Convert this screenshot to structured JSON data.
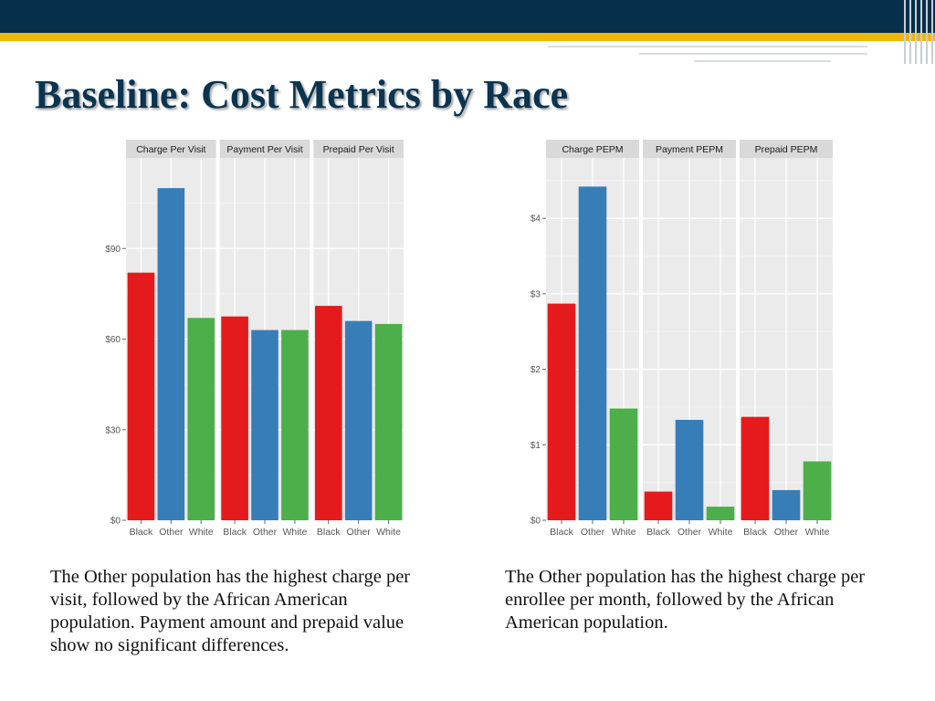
{
  "slide": {
    "title": "Baseline: Cost Metrics by Race",
    "caption_left": "The Other population has the highest charge per visit, followed by the African American population.  Payment amount and prepaid value show no significant differences.",
    "caption_right": "The Other population has the highest charge per enrollee per month, followed by the African American population."
  },
  "chart_data": [
    {
      "type": "bar",
      "facets": [
        "Charge Per Visit",
        "Payment Per Visit",
        "Prepaid Per Visit"
      ],
      "categories": [
        "Black",
        "Other",
        "White"
      ],
      "colors": [
        "#e41a1c",
        "#377eb8",
        "#4daf4a"
      ],
      "series": [
        {
          "facet": "Charge Per Visit",
          "values": [
            82,
            110,
            67
          ]
        },
        {
          "facet": "Payment Per Visit",
          "values": [
            67.5,
            63,
            63
          ]
        },
        {
          "facet": "Prepaid Per Visit",
          "values": [
            71,
            66,
            65
          ]
        }
      ],
      "ylim": [
        0,
        120
      ],
      "yticks": [
        0,
        30,
        60,
        90
      ],
      "ytick_labels": [
        "$0",
        "$30",
        "$60",
        "$90"
      ],
      "grid": true
    },
    {
      "type": "bar",
      "facets": [
        "Charge PEPM",
        "Payment PEPM",
        "Prepaid PEPM"
      ],
      "categories": [
        "Black",
        "Other",
        "White"
      ],
      "colors": [
        "#e41a1c",
        "#377eb8",
        "#4daf4a"
      ],
      "series": [
        {
          "facet": "Charge PEPM",
          "values": [
            2.87,
            4.42,
            1.48
          ]
        },
        {
          "facet": "Payment PEPM",
          "values": [
            0.38,
            1.33,
            0.18
          ]
        },
        {
          "facet": "Prepaid PEPM",
          "values": [
            1.37,
            0.4,
            0.78
          ]
        }
      ],
      "ylim": [
        0,
        4.8
      ],
      "yticks": [
        0,
        1,
        2,
        3,
        4
      ],
      "ytick_labels": [
        "$0",
        "$1",
        "$2",
        "$3",
        "$4"
      ],
      "grid": true
    }
  ]
}
